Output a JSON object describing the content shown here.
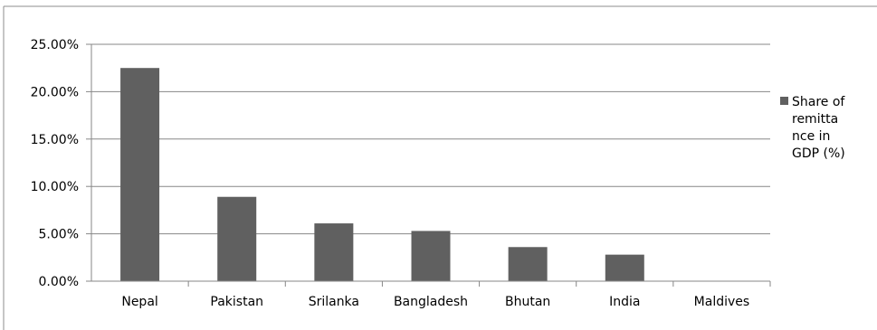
{
  "chart_data": {
    "type": "bar",
    "categories": [
      "Nepal",
      "Pakistan",
      "Srilanka",
      "Bangladesh",
      "Bhutan",
      "India",
      "Maldives"
    ],
    "series": [
      {
        "name": "Share of remittance in GDP (%)",
        "values": [
          22.5,
          8.9,
          6.1,
          5.3,
          3.6,
          2.8,
          0
        ]
      }
    ],
    "y_tick_labels": [
      "0.00%",
      "5.00%",
      "10.00%",
      "15.00%",
      "20.00%",
      "25.00%"
    ],
    "ylim": [
      0,
      25
    ],
    "y_tick_step": 5,
    "grid": true,
    "legend": {
      "placement": "right",
      "lines": [
        "Share of",
        "remitta",
        "nce in",
        "GDP (%)"
      ]
    },
    "colors": {
      "bar": "#606060",
      "grid": "#878787",
      "axis": "#878787",
      "border": "#8c8c8c"
    }
  }
}
